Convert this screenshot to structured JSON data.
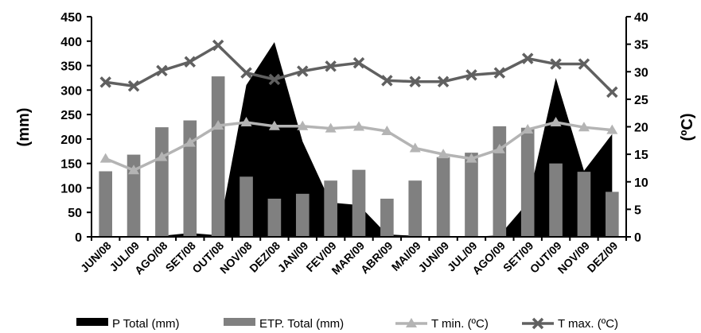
{
  "chart_data": {
    "type": "bar",
    "categories": [
      "JUN/08",
      "JUL/09",
      "AGO/08",
      "SET/08",
      "OUT/08",
      "NOV/08",
      "DEZ/08",
      "JAN/09",
      "FEV/09",
      "MAR/09",
      "ABR/09",
      "MAI/09",
      "JUN/09",
      "JUL/09",
      "AGO/09",
      "SET/09",
      "OUT/09",
      "NOV/09",
      "DEZ/09"
    ],
    "ylabel": "(mm)",
    "y2label": "(ºC)",
    "ylim": [
      0,
      450
    ],
    "y2lim": [
      0,
      40
    ],
    "yticks": [
      "0",
      "50",
      "100",
      "150",
      "200",
      "250",
      "300",
      "350",
      "400",
      "450"
    ],
    "y2ticks": [
      "0",
      "5",
      "10",
      "15",
      "20",
      "25",
      "30",
      "35",
      "40"
    ],
    "grid": false,
    "legend_position": "bottom",
    "series": [
      {
        "name": "P Total (mm)",
        "type": "area",
        "axis": "left",
        "color": "#000000",
        "values": [
          0,
          0,
          2,
          8,
          3,
          310,
          398,
          195,
          70,
          65,
          5,
          2,
          0,
          0,
          3,
          70,
          325,
          135,
          210
        ]
      },
      {
        "name": "ETP. Total (mm)",
        "type": "bar",
        "axis": "left",
        "color": "#808080",
        "values": [
          134,
          168,
          224,
          238,
          328,
          123,
          78,
          88,
          115,
          137,
          78,
          115,
          163,
          172,
          226,
          223,
          150,
          133,
          92
        ]
      },
      {
        "name": "T min. (ºC)",
        "type": "line",
        "axis": "right",
        "color": "#b4b4b4",
        "marker": "triangle",
        "values": [
          14.2,
          12.1,
          14.5,
          17.1,
          20.2,
          20.8,
          20.1,
          20.1,
          19.7,
          20.0,
          19.2,
          16.1,
          15.0,
          14.2,
          15.9,
          19.5,
          20.8,
          19.9,
          19.4
        ]
      },
      {
        "name": "T max. (ºC)",
        "type": "line",
        "axis": "right",
        "color": "#606060",
        "marker": "x",
        "values": [
          28.1,
          27.4,
          30.2,
          31.8,
          34.8,
          29.8,
          28.6,
          30.1,
          31.0,
          31.6,
          28.4,
          28.2,
          28.2,
          29.4,
          29.8,
          32.4,
          31.4,
          31.4,
          26.3
        ]
      }
    ]
  }
}
